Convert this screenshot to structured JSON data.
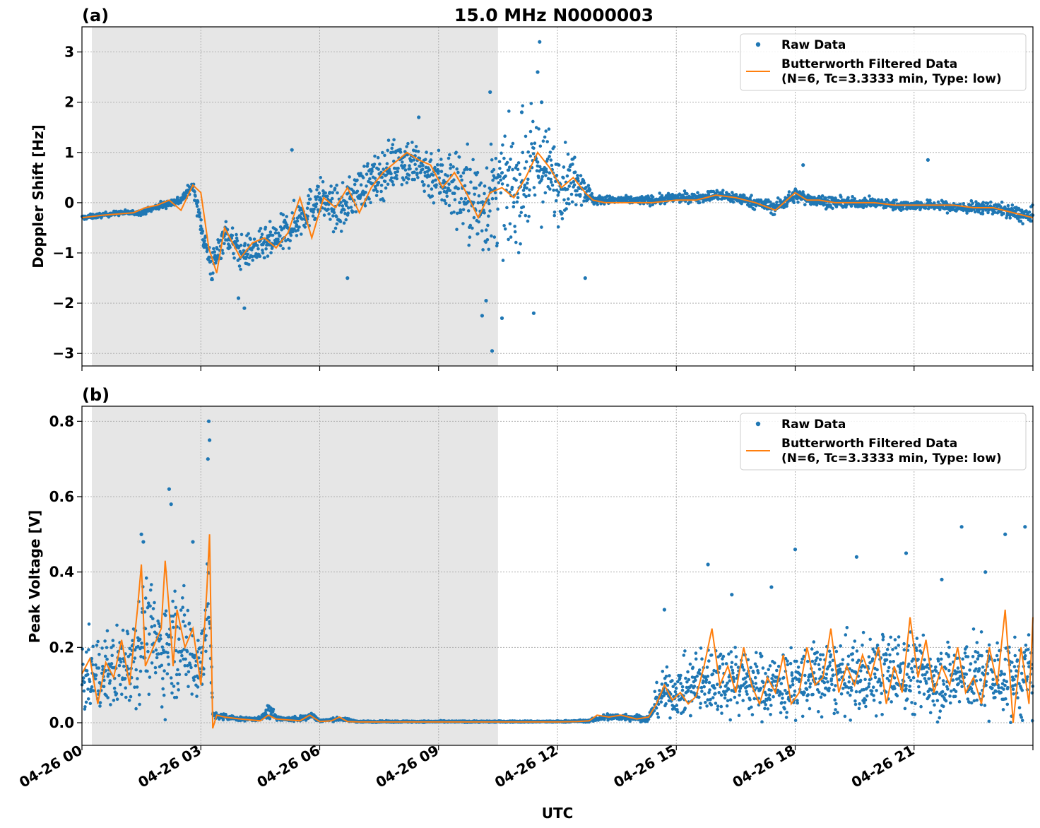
{
  "figure": {
    "title": "15.0 MHz N0000003",
    "xlabel": "UTC",
    "x_tick_labels": [
      "04-26 00",
      "04-26 03",
      "04-26 06",
      "04-26 09",
      "04-26 12",
      "04-26 15",
      "04-26 18",
      "04-26 21"
    ],
    "colors": {
      "raw": "#1f77b4",
      "filtered": "#ff7f0e",
      "shade": "#e6e6e6",
      "grid": "#b0b0b0"
    },
    "legend": {
      "raw_label": "Raw Data",
      "filtered_label_line1": "Butterworth Filtered Data",
      "filtered_label_line2": "(N=6, Tc=3.3333 min, Type: low)"
    }
  },
  "chart_data": [
    {
      "panel": "(a)",
      "type": "scatter",
      "title": "15.0 MHz N0000003",
      "xlabel": "UTC",
      "ylabel": "Doppler Shift [Hz]",
      "xlim_hours": [
        0,
        24
      ],
      "ylim": [
        -3.25,
        3.5
      ],
      "yticks": [
        -3,
        -2,
        -1,
        0,
        1,
        2,
        3
      ],
      "ytick_labels": [
        "−3",
        "−2",
        "−1",
        "0",
        "1",
        "2",
        "3"
      ],
      "shaded_region_hours": [
        0.25,
        10.5
      ],
      "legend_position": "top-right",
      "series": [
        {
          "name": "Raw Data",
          "style": "dots",
          "x": [
            0,
            0.5,
            1,
            1.5,
            2,
            2.5,
            2.8,
            3.1,
            3.3,
            3.6,
            4,
            4.5,
            5,
            5.5,
            6,
            6.5,
            7,
            7.5,
            8,
            8.5,
            9,
            9.5,
            10,
            10.5,
            11,
            11.5,
            12,
            12.5,
            12.9,
            13.5,
            14,
            14.5,
            15,
            15.5,
            16,
            16.5,
            17,
            17.5,
            18,
            18.5,
            19,
            19.5,
            20,
            20.5,
            21,
            21.5,
            22,
            22.5,
            23,
            23.5,
            24
          ],
          "y": [
            -0.3,
            -0.25,
            -0.2,
            -0.2,
            -0.05,
            0.05,
            0.35,
            -0.8,
            -1.3,
            -0.6,
            -1.0,
            -0.9,
            -0.7,
            -0.3,
            0.1,
            -0.2,
            0.3,
            0.5,
            0.9,
            0.7,
            0.5,
            0.3,
            -0.1,
            0.2,
            0.3,
            0.8,
            0.4,
            0.5,
            0.05,
            0.05,
            0.05,
            0.05,
            0.1,
            0.1,
            0.15,
            0.1,
            0.0,
            -0.1,
            0.15,
            0.05,
            0.0,
            0.0,
            0.0,
            -0.05,
            -0.05,
            -0.05,
            -0.1,
            -0.1,
            -0.1,
            -0.2,
            -0.3
          ],
          "spread": [
            0.05,
            0.05,
            0.05,
            0.05,
            0.08,
            0.1,
            0.1,
            0.3,
            0.4,
            0.3,
            0.35,
            0.35,
            0.4,
            0.4,
            0.4,
            0.45,
            0.45,
            0.5,
            0.55,
            0.55,
            0.6,
            0.9,
            1.1,
            1.1,
            1.2,
            1.1,
            0.8,
            0.5,
            0.1,
            0.08,
            0.08,
            0.1,
            0.1,
            0.1,
            0.12,
            0.12,
            0.12,
            0.15,
            0.15,
            0.12,
            0.12,
            0.1,
            0.1,
            0.1,
            0.1,
            0.1,
            0.12,
            0.12,
            0.12,
            0.15,
            0.2
          ],
          "outliers": [
            [
              11.55,
              3.2
            ],
            [
              11.5,
              2.6
            ],
            [
              10.3,
              2.2
            ],
            [
              11.6,
              2.0
            ],
            [
              10.35,
              -2.95
            ],
            [
              10.6,
              -2.3
            ],
            [
              11.4,
              -2.2
            ],
            [
              10.1,
              -2.25
            ],
            [
              8.5,
              1.7
            ],
            [
              5.3,
              1.05
            ],
            [
              6.7,
              -1.5
            ],
            [
              4.1,
              -2.1
            ],
            [
              3.95,
              -1.9
            ],
            [
              18.2,
              0.75
            ],
            [
              21.35,
              0.85
            ],
            [
              12.7,
              -1.5
            ],
            [
              11.1,
              1.8
            ],
            [
              10.2,
              -1.95
            ]
          ]
        },
        {
          "name": "Butterworth Filtered Data",
          "style": "line",
          "x": [
            0,
            0.5,
            1,
            1.3,
            1.6,
            1.9,
            2.2,
            2.5,
            2.8,
            3.0,
            3.2,
            3.4,
            3.6,
            3.8,
            4.0,
            4.3,
            4.6,
            4.9,
            5.2,
            5.5,
            5.8,
            6.1,
            6.4,
            6.7,
            7.0,
            7.3,
            7.6,
            7.9,
            8.2,
            8.5,
            8.8,
            9.1,
            9.4,
            9.7,
            10.0,
            10.3,
            10.6,
            10.9,
            11.2,
            11.5,
            11.8,
            12.1,
            12.4,
            12.7,
            12.9,
            13.2,
            13.8,
            14.4,
            15,
            15.5,
            16,
            16.5,
            17,
            17.5,
            18,
            18.3,
            18.6,
            19,
            19.5,
            20,
            20.5,
            21,
            21.5,
            22,
            22.5,
            23,
            23.5,
            24
          ],
          "y": [
            -0.3,
            -0.25,
            -0.22,
            -0.2,
            -0.1,
            -0.05,
            0.05,
            -0.15,
            0.35,
            0.2,
            -0.9,
            -1.4,
            -0.5,
            -0.8,
            -1.1,
            -0.8,
            -0.7,
            -0.9,
            -0.6,
            0.1,
            -0.7,
            0.1,
            -0.1,
            0.3,
            -0.2,
            0.3,
            0.6,
            0.8,
            1.0,
            0.85,
            0.75,
            0.3,
            0.6,
            0.2,
            -0.3,
            0.2,
            0.3,
            0.1,
            0.5,
            1.0,
            0.7,
            0.3,
            0.5,
            0.2,
            0.05,
            0.0,
            0.0,
            0.0,
            0.05,
            0.05,
            0.15,
            0.1,
            0.0,
            -0.15,
            0.2,
            0.05,
            0.05,
            0.0,
            0.0,
            0.0,
            -0.05,
            -0.05,
            -0.05,
            -0.05,
            -0.1,
            -0.1,
            -0.2,
            -0.3
          ]
        }
      ]
    },
    {
      "panel": "(b)",
      "type": "scatter",
      "xlabel": "UTC",
      "ylabel": "Peak Voltage [V]",
      "xlim_hours": [
        0,
        24
      ],
      "ylim": [
        -0.06,
        0.84
      ],
      "yticks": [
        0.0,
        0.2,
        0.4,
        0.6,
        0.8
      ],
      "ytick_labels": [
        "0.0",
        "0.2",
        "0.4",
        "0.6",
        "0.8"
      ],
      "shaded_region_hours": [
        0.25,
        10.5
      ],
      "legend_position": "top-right",
      "series": [
        {
          "name": "Raw Data",
          "style": "dots",
          "x": [
            0,
            0.5,
            1,
            1.4,
            1.6,
            2.0,
            2.3,
            2.7,
            3.0,
            3.2,
            3.3,
            3.6,
            4,
            4.5,
            4.7,
            5,
            5.5,
            5.8,
            6,
            6.5,
            7,
            8,
            9,
            10,
            11,
            12,
            12.8,
            13.2,
            13.8,
            14.3,
            14.6,
            15,
            15.5,
            16,
            16.5,
            17,
            17.5,
            18,
            18.5,
            19,
            19.5,
            20,
            20.5,
            21,
            21.5,
            22,
            22.5,
            23,
            23.5,
            24
          ],
          "y": [
            0.12,
            0.13,
            0.15,
            0.2,
            0.25,
            0.18,
            0.22,
            0.2,
            0.15,
            0.35,
            0.02,
            0.015,
            0.01,
            0.01,
            0.03,
            0.01,
            0.01,
            0.02,
            0.005,
            0.01,
            0.003,
            0.003,
            0.003,
            0.003,
            0.003,
            0.003,
            0.005,
            0.015,
            0.015,
            0.01,
            0.08,
            0.08,
            0.1,
            0.12,
            0.12,
            0.1,
            0.1,
            0.1,
            0.12,
            0.12,
            0.12,
            0.13,
            0.14,
            0.13,
            0.12,
            0.12,
            0.13,
            0.12,
            0.12,
            0.12
          ],
          "spread": [
            0.1,
            0.1,
            0.12,
            0.15,
            0.15,
            0.15,
            0.15,
            0.15,
            0.12,
            0.12,
            0.01,
            0.01,
            0.005,
            0.005,
            0.02,
            0.005,
            0.008,
            0.01,
            0.003,
            0.005,
            0.002,
            0.002,
            0.002,
            0.002,
            0.002,
            0.002,
            0.003,
            0.01,
            0.01,
            0.008,
            0.06,
            0.06,
            0.1,
            0.1,
            0.1,
            0.09,
            0.09,
            0.1,
            0.1,
            0.1,
            0.11,
            0.11,
            0.11,
            0.11,
            0.11,
            0.1,
            0.11,
            0.11,
            0.11,
            0.12
          ],
          "outliers": [
            [
              3.2,
              0.8
            ],
            [
              3.22,
              0.75
            ],
            [
              3.18,
              0.7
            ],
            [
              2.2,
              0.62
            ],
            [
              2.25,
              0.58
            ],
            [
              1.5,
              0.5
            ],
            [
              1.55,
              0.48
            ],
            [
              2.8,
              0.48
            ],
            [
              15.8,
              0.42
            ],
            [
              18.0,
              0.46
            ],
            [
              19.55,
              0.44
            ],
            [
              22.2,
              0.52
            ],
            [
              23.8,
              0.52
            ],
            [
              23.3,
              0.5
            ],
            [
              21.7,
              0.38
            ],
            [
              17.4,
              0.36
            ],
            [
              16.4,
              0.34
            ],
            [
              14.7,
              0.3
            ],
            [
              20.8,
              0.45
            ],
            [
              22.8,
              0.4
            ]
          ]
        },
        {
          "name": "Butterworth Filtered Data",
          "style": "line",
          "x": [
            0,
            0.2,
            0.4,
            0.6,
            0.8,
            1.0,
            1.2,
            1.4,
            1.5,
            1.6,
            1.8,
            2.0,
            2.1,
            2.2,
            2.3,
            2.4,
            2.6,
            2.8,
            3.0,
            3.15,
            3.22,
            3.3,
            3.4,
            3.6,
            4,
            4.5,
            4.7,
            4.9,
            5.5,
            5.75,
            6,
            6.3,
            6.5,
            6.7,
            7,
            8,
            9,
            10,
            11,
            12,
            12.5,
            12.8,
            13.0,
            13.3,
            13.6,
            14.0,
            14.3,
            14.5,
            14.7,
            14.9,
            15.1,
            15.3,
            15.5,
            15.7,
            15.9,
            16.1,
            16.3,
            16.5,
            16.7,
            16.9,
            17.1,
            17.3,
            17.5,
            17.7,
            17.9,
            18.1,
            18.3,
            18.5,
            18.7,
            18.9,
            19.1,
            19.3,
            19.5,
            19.7,
            19.9,
            20.1,
            20.3,
            20.5,
            20.7,
            20.9,
            21.1,
            21.3,
            21.5,
            21.7,
            21.9,
            22.1,
            22.3,
            22.5,
            22.7,
            22.9,
            23.1,
            23.3,
            23.5,
            23.7,
            23.9,
            24
          ],
          "y": [
            0.13,
            0.17,
            0.05,
            0.16,
            0.12,
            0.22,
            0.1,
            0.3,
            0.42,
            0.15,
            0.2,
            0.25,
            0.43,
            0.3,
            0.15,
            0.3,
            0.2,
            0.25,
            0.1,
            0.35,
            0.5,
            -0.015,
            0.02,
            0.015,
            0.01,
            0.005,
            0.02,
            0.01,
            0.005,
            0.02,
            0.003,
            0.005,
            0.015,
            0.003,
            0.002,
            0.002,
            0.002,
            0.002,
            0.002,
            0.002,
            0.003,
            0.005,
            0.02,
            0.015,
            0.02,
            0.01,
            0.015,
            0.05,
            0.1,
            0.06,
            0.08,
            0.05,
            0.07,
            0.15,
            0.25,
            0.1,
            0.15,
            0.08,
            0.2,
            0.1,
            0.05,
            0.12,
            0.08,
            0.18,
            0.05,
            0.08,
            0.2,
            0.1,
            0.12,
            0.25,
            0.08,
            0.15,
            0.1,
            0.18,
            0.12,
            0.2,
            0.05,
            0.15,
            0.08,
            0.28,
            0.12,
            0.22,
            0.08,
            0.15,
            0.1,
            0.2,
            0.08,
            0.12,
            0.05,
            0.2,
            0.1,
            0.3,
            0.0,
            0.2,
            0.05,
            0.28
          ]
        }
      ]
    }
  ]
}
